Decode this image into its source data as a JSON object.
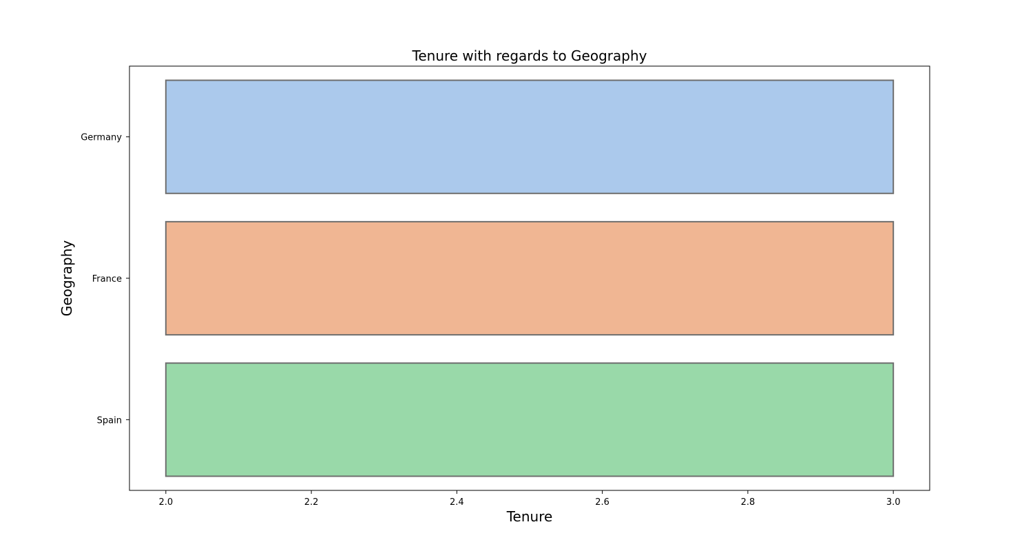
{
  "chart_data": {
    "type": "boxplot",
    "orientation": "horizontal",
    "title": "Tenure with regards to Geography",
    "xlabel": "Tenure",
    "ylabel": "Geography",
    "xlim": [
      1.95,
      3.05
    ],
    "xticks": [
      "2.0",
      "2.2",
      "2.4",
      "2.6",
      "2.8",
      "3.0"
    ],
    "grid": false,
    "categories": [
      "Germany",
      "France",
      "Spain"
    ],
    "boxes": [
      {
        "category": "Germany",
        "q1": 2.0,
        "q3": 3.0,
        "color": "#abc9ec"
      },
      {
        "category": "France",
        "q1": 2.0,
        "q3": 3.0,
        "color": "#f0b693"
      },
      {
        "category": "Spain",
        "q1": 2.0,
        "q3": 3.0,
        "color": "#99d9a9"
      }
    ],
    "edge_color": "#6e6e6e"
  }
}
